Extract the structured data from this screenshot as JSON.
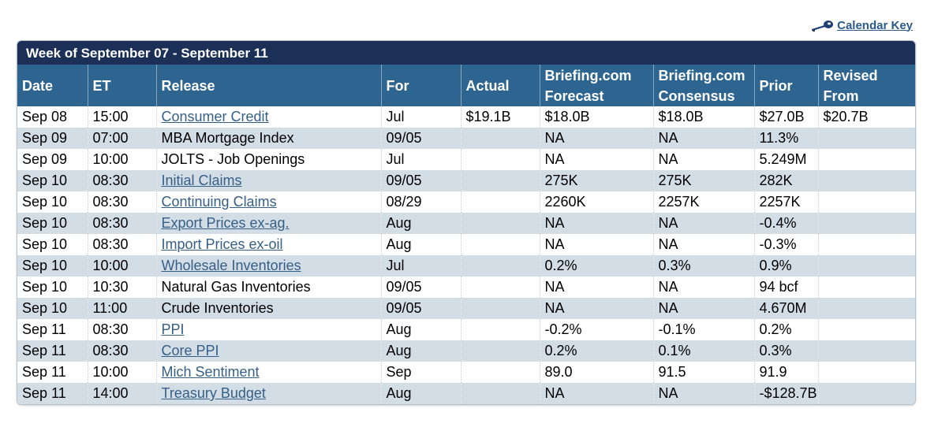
{
  "calendar_key": {
    "label": "Calendar Key",
    "icon": "key-icon"
  },
  "week_title": "Week of September 07 - September 11",
  "columns": {
    "date": "Date",
    "et": "ET",
    "release": "Release",
    "for": "For",
    "actual": "Actual",
    "forecast": [
      "Briefing.com",
      "Forecast"
    ],
    "consensus": [
      "Briefing.com",
      "Consensus"
    ],
    "prior": "Prior",
    "revised": [
      "Revised",
      "From"
    ]
  },
  "rows": [
    {
      "date": "Sep 08",
      "et": "15:00",
      "release": "Consumer Credit",
      "link": true,
      "for": "Jul",
      "actual": "$19.1B",
      "forecast": "$18.0B",
      "consensus": "$18.0B",
      "prior": "$27.0B",
      "revised": "$20.7B"
    },
    {
      "date": "Sep 09",
      "et": "07:00",
      "release": "MBA Mortgage Index",
      "link": false,
      "for": "09/05",
      "actual": "",
      "forecast": "NA",
      "consensus": "NA",
      "prior": "11.3%",
      "revised": ""
    },
    {
      "date": "Sep 09",
      "et": "10:00",
      "release": "JOLTS - Job Openings",
      "link": false,
      "for": "Jul",
      "actual": "",
      "forecast": "NA",
      "consensus": "NA",
      "prior": "5.249M",
      "revised": ""
    },
    {
      "date": "Sep 10",
      "et": "08:30",
      "release": "Initial Claims",
      "link": true,
      "for": "09/05",
      "actual": "",
      "forecast": "275K",
      "consensus": "275K",
      "prior": "282K",
      "revised": ""
    },
    {
      "date": "Sep 10",
      "et": "08:30",
      "release": "Continuing Claims",
      "link": true,
      "for": "08/29",
      "actual": "",
      "forecast": "2260K",
      "consensus": "2257K",
      "prior": "2257K",
      "revised": ""
    },
    {
      "date": "Sep 10",
      "et": "08:30",
      "release": "Export Prices ex-ag.",
      "link": true,
      "for": "Aug",
      "actual": "",
      "forecast": "NA",
      "consensus": "NA",
      "prior": "-0.4%",
      "revised": ""
    },
    {
      "date": "Sep 10",
      "et": "08:30",
      "release": "Import Prices ex-oil",
      "link": true,
      "for": "Aug",
      "actual": "",
      "forecast": "NA",
      "consensus": "NA",
      "prior": "-0.3%",
      "revised": ""
    },
    {
      "date": "Sep 10",
      "et": "10:00",
      "release": "Wholesale Inventories",
      "link": true,
      "for": "Jul",
      "actual": "",
      "forecast": "0.2%",
      "consensus": "0.3%",
      "prior": "0.9%",
      "revised": ""
    },
    {
      "date": "Sep 10",
      "et": "10:30",
      "release": "Natural Gas Inventories",
      "link": false,
      "for": "09/05",
      "actual": "",
      "forecast": "NA",
      "consensus": "NA",
      "prior": "94 bcf",
      "revised": ""
    },
    {
      "date": "Sep 10",
      "et": "11:00",
      "release": "Crude Inventories",
      "link": false,
      "for": "09/05",
      "actual": "",
      "forecast": "NA",
      "consensus": "NA",
      "prior": "4.670M",
      "revised": ""
    },
    {
      "date": "Sep 11",
      "et": "08:30",
      "release": "PPI",
      "link": true,
      "for": "Aug",
      "actual": "",
      "forecast": "-0.2%",
      "consensus": "-0.1%",
      "prior": "0.2%",
      "revised": ""
    },
    {
      "date": "Sep 11",
      "et": "08:30",
      "release": "Core PPI",
      "link": true,
      "for": "Aug",
      "actual": "",
      "forecast": "0.2%",
      "consensus": "0.1%",
      "prior": "0.3%",
      "revised": ""
    },
    {
      "date": "Sep 11",
      "et": "10:00",
      "release": "Mich Sentiment",
      "link": true,
      "for": "Sep",
      "actual": "",
      "forecast": "89.0",
      "consensus": "91.5",
      "prior": "91.9",
      "revised": ""
    },
    {
      "date": "Sep 11",
      "et": "14:00",
      "release": "Treasury Budget",
      "link": true,
      "for": "Aug",
      "actual": "",
      "forecast": "NA",
      "consensus": "NA",
      "prior": "-$128.7B",
      "revised": ""
    }
  ],
  "colors": {
    "week_header_bg": "#1b2f57",
    "column_header_bg": "#2e6590",
    "alt_row_bg": "#d2dde6",
    "link": "#355f86"
  }
}
